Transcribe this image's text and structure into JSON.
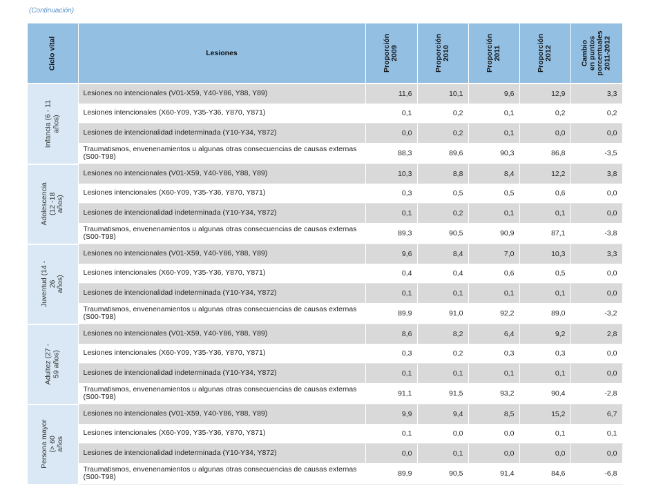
{
  "continuation": "(Continuación)",
  "table": {
    "headers": {
      "ciclo": "Ciclo vital",
      "lesiones": "Lesiones",
      "p2009": "Proporción\n2009",
      "p2010": "Proporción\n2010",
      "p2011": "Proporción\n2011",
      "p2012": "Proporción\n2012",
      "cambio": "Cambio\nen puntos\nporcentuales\n2011-2012"
    },
    "groups": [
      {
        "label": "Infancia (6 - 11 años)",
        "rows": [
          {
            "lesion": "Lesiones no intencionales (V01-X59, Y40-Y86, Y88, Y89)",
            "v2009": "11,6",
            "v2010": "10,1",
            "v2011": "9,6",
            "v2012": "12,9",
            "cambio": "3,3"
          },
          {
            "lesion": "Lesiones intencionales (X60-Y09, Y35-Y36, Y870, Y871)",
            "v2009": "0,1",
            "v2010": "0,2",
            "v2011": "0,1",
            "v2012": "0,2",
            "cambio": "0,2"
          },
          {
            "lesion": "Lesiones de intencionalidad indeterminada (Y10-Y34, Y872)",
            "v2009": "0,0",
            "v2010": "0,2",
            "v2011": "0,1",
            "v2012": "0,0",
            "cambio": "0,0"
          },
          {
            "lesion": "Traumatismos, envenenamientos u algunas otras consecuencias de causas externas (S00-T98)",
            "v2009": "88,3",
            "v2010": "89,6",
            "v2011": "90,3",
            "v2012": "86,8",
            "cambio": "-3,5"
          }
        ]
      },
      {
        "label": "Adolescencia (12 -18\naños)",
        "rows": [
          {
            "lesion": "Lesiones no intencionales (V01-X59, Y40-Y86, Y88, Y89)",
            "v2009": "10,3",
            "v2010": "8,8",
            "v2011": "8,4",
            "v2012": "12,2",
            "cambio": "3,8"
          },
          {
            "lesion": "Lesiones intencionales (X60-Y09, Y35-Y36, Y870, Y871)",
            "v2009": "0,3",
            "v2010": "0,5",
            "v2011": "0,5",
            "v2012": "0,6",
            "cambio": "0,0"
          },
          {
            "lesion": "Lesiones de intencionalidad indeterminada (Y10-Y34, Y872)",
            "v2009": "0,1",
            "v2010": "0,2",
            "v2011": "0,1",
            "v2012": "0,1",
            "cambio": "0,0"
          },
          {
            "lesion": "Traumatismos, envenenamientos u algunas otras consecuencias de causas externas (S00-T98)",
            "v2009": "89,3",
            "v2010": "90,5",
            "v2011": "90,9",
            "v2012": "87,1",
            "cambio": "-3,8"
          }
        ]
      },
      {
        "label": "Juventud (14 - 26\naños)",
        "rows": [
          {
            "lesion": "Lesiones no intencionales (V01-X59, Y40-Y86, Y88, Y89)",
            "v2009": "9,6",
            "v2010": "8,4",
            "v2011": "7,0",
            "v2012": "10,3",
            "cambio": "3,3"
          },
          {
            "lesion": "Lesiones intencionales (X60-Y09, Y35-Y36, Y870, Y871)",
            "v2009": "0,4",
            "v2010": "0,4",
            "v2011": "0,6",
            "v2012": "0,5",
            "cambio": "0,0"
          },
          {
            "lesion": "Lesiones de intencionalidad indeterminada (Y10-Y34, Y872)",
            "v2009": "0,1",
            "v2010": "0,1",
            "v2011": "0,1",
            "v2012": "0,1",
            "cambio": "0,0"
          },
          {
            "lesion": "Traumatismos, envenenamientos u algunas otras consecuencias de causas externas (S00-T98)",
            "v2009": "89,9",
            "v2010": "91,0",
            "v2011": "92,2",
            "v2012": "89,0",
            "cambio": "-3,2"
          }
        ]
      },
      {
        "label": "Adultez (27 - 59 años)",
        "rows": [
          {
            "lesion": "Lesiones no intencionales (V01-X59, Y40-Y86, Y88, Y89)",
            "v2009": "8,6",
            "v2010": "8,2",
            "v2011": "6,4",
            "v2012": "9,2",
            "cambio": "2,8"
          },
          {
            "lesion": "Lesiones intencionales (X60-Y09, Y35-Y36, Y870, Y871)",
            "v2009": "0,3",
            "v2010": "0,2",
            "v2011": "0,3",
            "v2012": "0,3",
            "cambio": "0,0"
          },
          {
            "lesion": "Lesiones de intencionalidad indeterminada (Y10-Y34, Y872)",
            "v2009": "0,1",
            "v2010": "0,1",
            "v2011": "0,1",
            "v2012": "0,1",
            "cambio": "0,0"
          },
          {
            "lesion": "Traumatismos, envenenamientos u algunas otras consecuencias de causas externas (S00-T98)",
            "v2009": "91,1",
            "v2010": "91,5",
            "v2011": "93,2",
            "v2012": "90,4",
            "cambio": "-2,8"
          }
        ]
      },
      {
        "label": "Persona mayor (> 60\naños",
        "rows": [
          {
            "lesion": "Lesiones no intencionales (V01-X59, Y40-Y86, Y88, Y89)",
            "v2009": "9,9",
            "v2010": "9,4",
            "v2011": "8,5",
            "v2012": "15,2",
            "cambio": "6,7"
          },
          {
            "lesion": "Lesiones intencionales (X60-Y09, Y35-Y36, Y870, Y871)",
            "v2009": "0,1",
            "v2010": "0,0",
            "v2011": "0,0",
            "v2012": "0,1",
            "cambio": "0,1"
          },
          {
            "lesion": "Lesiones de intencionalidad indeterminada (Y10-Y34, Y872)",
            "v2009": "0,0",
            "v2010": "0,1",
            "v2011": "0,0",
            "v2012": "0,0",
            "cambio": "0,0"
          },
          {
            "lesion": "Traumatismos, envenenamientos u algunas otras consecuencias de causas externas (S00-T98)",
            "v2009": "89,9",
            "v2010": "90,5",
            "v2011": "91,4",
            "v2012": "84,6",
            "cambio": "-6,8"
          }
        ]
      }
    ]
  }
}
